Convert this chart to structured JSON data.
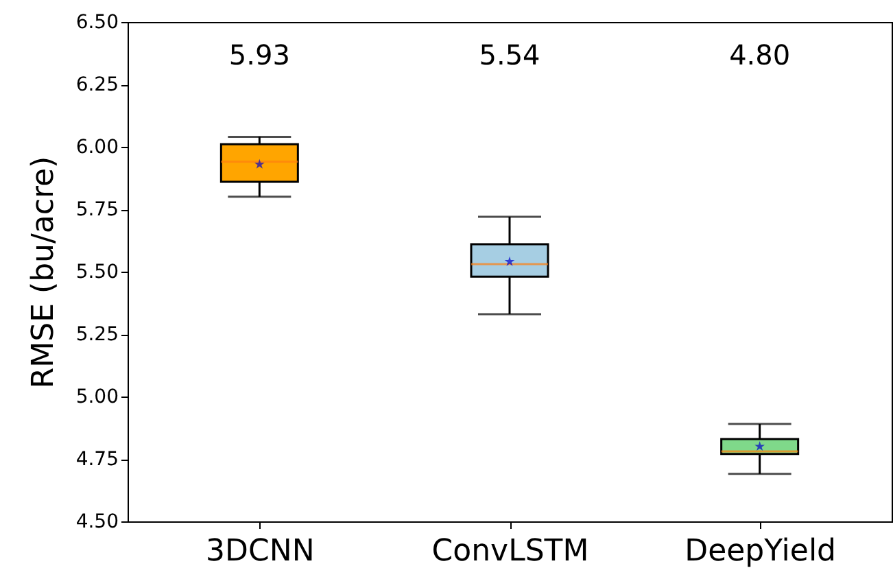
{
  "chart_data": {
    "type": "box",
    "ylabel": "RMSE (bu/acre)",
    "categories": [
      "3DCNN",
      "ConvLSTM",
      "DeepYield"
    ],
    "colors": [
      "#ffa500",
      "#a6cee3",
      "#7fd98a"
    ],
    "boxes": [
      {
        "low": 5.8,
        "q1": 5.86,
        "median": 5.94,
        "q3": 6.01,
        "high": 6.04,
        "mean": 5.93
      },
      {
        "low": 5.33,
        "q1": 5.48,
        "median": 5.53,
        "q3": 5.61,
        "high": 5.72,
        "mean": 5.54
      },
      {
        "low": 4.69,
        "q1": 4.77,
        "median": 4.78,
        "q3": 4.83,
        "high": 4.89,
        "mean": 4.8
      }
    ],
    "annotations": [
      "5.93",
      "5.54",
      "4.80"
    ],
    "ylim": [
      4.5,
      6.5
    ],
    "yticks": [
      {
        "value": 4.5,
        "label": "4.50"
      },
      4.75,
      {
        "value": 5.0,
        "label": "5.00"
      },
      5.25,
      {
        "value": 5.5,
        "label": "5.50"
      },
      5.75,
      {
        "value": 6.0,
        "label": "6.00"
      },
      6.25,
      {
        "value": 6.5,
        "label": "6.50"
      }
    ],
    "grid": false,
    "marker": "star"
  }
}
